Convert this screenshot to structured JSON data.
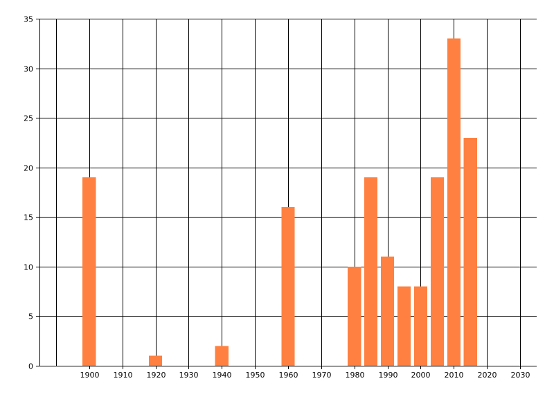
{
  "chart_data": {
    "type": "bar",
    "title": "",
    "xlabel": "",
    "ylabel": "",
    "x": [
      1900,
      1920,
      1940,
      1960,
      1980,
      1985,
      1990,
      1995,
      2000,
      2005,
      2010,
      2015
    ],
    "values": [
      19,
      1,
      2,
      16,
      10,
      19,
      11,
      8,
      8,
      19,
      33,
      23
    ],
    "bar_width_years": 4,
    "xlim": [
      1885,
      2035
    ],
    "ylim": [
      0,
      35
    ],
    "x_ticks": [
      1900,
      1910,
      1920,
      1930,
      1940,
      1950,
      1960,
      1970,
      1980,
      1990,
      2000,
      2010,
      2020,
      2030
    ],
    "y_ticks": [
      0,
      5,
      10,
      15,
      20,
      25,
      30,
      35
    ],
    "x_grid_values": [
      1880,
      1890,
      1900,
      1910,
      1920,
      1930,
      1940,
      1950,
      1960,
      1970,
      1980,
      1990,
      2000,
      2010,
      2020,
      2030,
      2040
    ],
    "grid": true,
    "legend": "none",
    "bar_color": "#FF8040",
    "grid_color": "#000000",
    "background": "#FFFFFF"
  }
}
